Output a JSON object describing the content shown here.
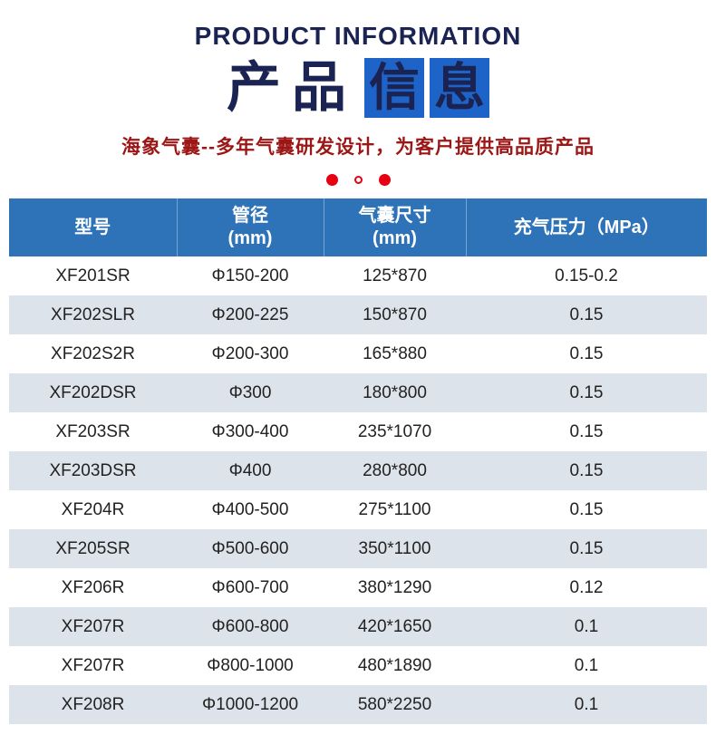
{
  "header": {
    "title_en": "PRODUCT INFORMATION",
    "title_zh_plain": "产品",
    "title_zh_block1": "信",
    "title_zh_block2": "息",
    "subtitle": "海象气囊--多年气囊研发设计，为客户提供高品质产品"
  },
  "colors": {
    "title_navy": "#1a2352",
    "title_block_blue": "#1e64c8",
    "table_header_blue": "#2e73b8",
    "row_alternate": "#dde3ea",
    "accent_red": "#e60012",
    "subtitle_red": "#9c1616"
  },
  "table": {
    "columns": [
      {
        "line1": "型号",
        "line2": ""
      },
      {
        "line1": "管径",
        "line2": "(mm)"
      },
      {
        "line1": "气囊尺寸",
        "line2": "(mm)"
      },
      {
        "line1": "充气压力（MPa）",
        "line2": ""
      }
    ],
    "rows": [
      [
        "XF201SR",
        "Φ150-200",
        "125*870",
        "0.15-0.2"
      ],
      [
        "XF202SLR",
        "Φ200-225",
        "150*870",
        "0.15"
      ],
      [
        "XF202S2R",
        "Φ200-300",
        "165*880",
        "0.15"
      ],
      [
        "XF202DSR",
        "Φ300",
        "180*800",
        "0.15"
      ],
      [
        "XF203SR",
        "Φ300-400",
        "235*1070",
        "0.15"
      ],
      [
        "XF203DSR",
        "Φ400",
        "280*800",
        "0.15"
      ],
      [
        "XF204R",
        "Φ400-500",
        "275*1100",
        "0.15"
      ],
      [
        "XF205SR",
        "Φ500-600",
        "350*1100",
        "0.15"
      ],
      [
        "XF206R",
        "Φ600-700",
        "380*1290",
        "0.12"
      ],
      [
        "XF207R",
        "Φ600-800",
        "420*1650",
        "0.1"
      ],
      [
        "XF207R",
        "Φ800-1000",
        "480*1890",
        "0.1"
      ],
      [
        "XF208R",
        "Φ1000-1200",
        "580*2250",
        "0.1"
      ]
    ]
  }
}
